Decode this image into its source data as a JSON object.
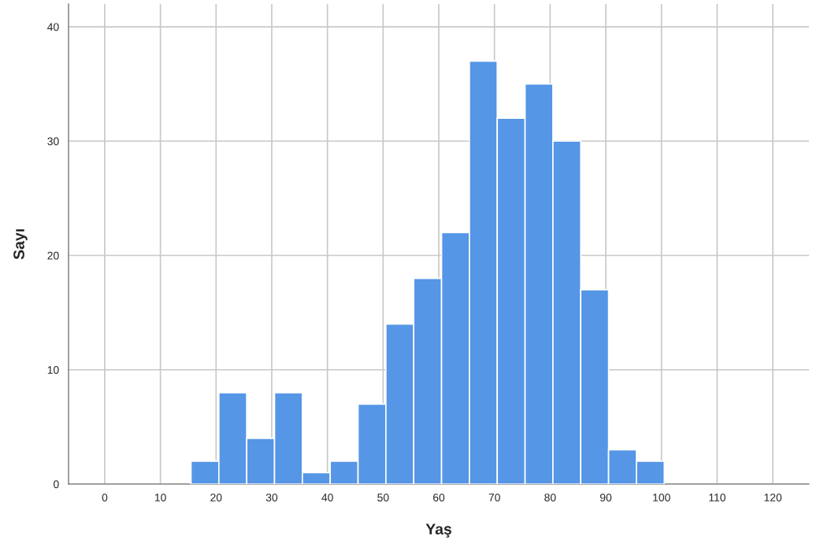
{
  "chart_data": {
    "type": "histogram",
    "xlabel": "Yaş",
    "ylabel": "Sayı",
    "bins": [
      15.5,
      20.5,
      25.5,
      30.5,
      35.5,
      40.5,
      45.5,
      50.5,
      55.5,
      60.5,
      65.5,
      70.5,
      75.5,
      80.5,
      85.5,
      90.5,
      95.5,
      100.5
    ],
    "values": [
      2,
      8,
      4,
      8,
      1,
      2,
      7,
      14,
      18,
      22,
      37,
      32,
      35,
      30,
      17,
      3,
      2
    ],
    "color": "#5596e6",
    "xlim": [
      -6.5,
      126.5
    ],
    "xticks": [
      0,
      10,
      20,
      30,
      40,
      50,
      60,
      70,
      80,
      90,
      100,
      110,
      120
    ],
    "ylim": [
      0,
      42
    ],
    "yticks": [
      0,
      10,
      20,
      30,
      40
    ],
    "grid": true
  }
}
